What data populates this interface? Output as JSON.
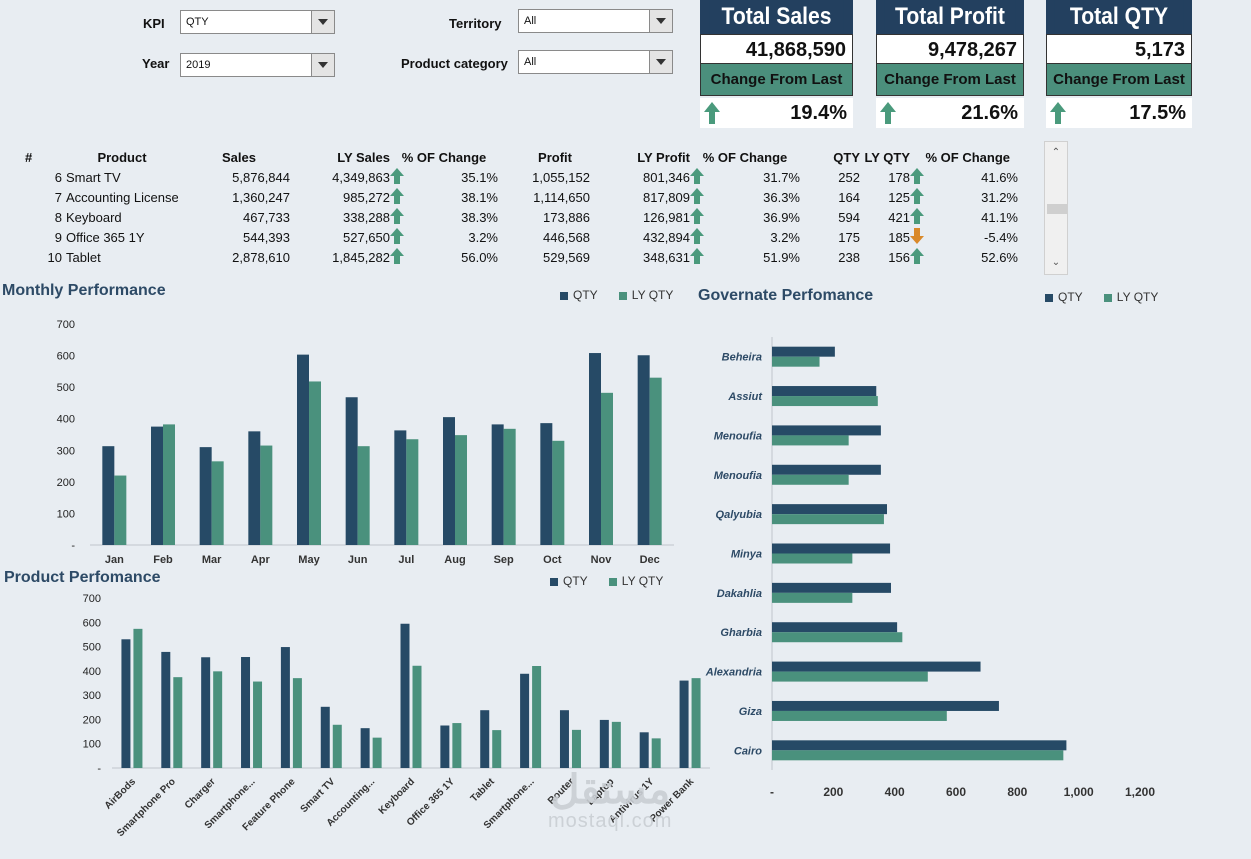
{
  "filters": {
    "kpi_label": "KPI",
    "kpi_value": "QTY",
    "year_label": "Year",
    "year_value": "2019",
    "territory_label": "Territory",
    "territory_value": "All",
    "category_label": "Product category",
    "category_value": "All"
  },
  "cards": [
    {
      "title": "Total Sales",
      "value": "41,868,590",
      "change_label": "Change From Last Year",
      "change": "19.4%"
    },
    {
      "title": "Total Profit",
      "value": "9,478,267",
      "change_label": "Change From Last Year",
      "change": "21.6%"
    },
    {
      "title": "Total QTY",
      "value": "5,173",
      "change_label": "Change From Last Year",
      "change": "17.5%"
    }
  ],
  "table": {
    "headers": [
      "#",
      "Product",
      "Sales",
      "LY Sales",
      "% OF Change",
      "Profit",
      "LY Profit",
      "% OF Change",
      "QTY",
      "LY QTY",
      "% OF Change"
    ],
    "rows": [
      {
        "n": "6",
        "product": "Smart TV",
        "sales": "5,876,844",
        "ly_sales": "4,349,863",
        "sales_chg": "35.1%",
        "sales_dir": "up",
        "profit": "1,055,152",
        "ly_profit": "801,346",
        "profit_chg": "31.7%",
        "profit_dir": "up",
        "qty": "252",
        "ly_qty": "178",
        "qty_chg": "41.6%",
        "qty_dir": "up"
      },
      {
        "n": "7",
        "product": "Accounting License",
        "sales": "1,360,247",
        "ly_sales": "985,272",
        "sales_chg": "38.1%",
        "sales_dir": "up",
        "profit": "1,114,650",
        "ly_profit": "817,809",
        "profit_chg": "36.3%",
        "profit_dir": "up",
        "qty": "164",
        "ly_qty": "125",
        "qty_chg": "31.2%",
        "qty_dir": "up"
      },
      {
        "n": "8",
        "product": "Keyboard",
        "sales": "467,733",
        "ly_sales": "338,288",
        "sales_chg": "38.3%",
        "sales_dir": "up",
        "profit": "173,886",
        "ly_profit": "126,981",
        "profit_chg": "36.9%",
        "profit_dir": "up",
        "qty": "594",
        "ly_qty": "421",
        "qty_chg": "41.1%",
        "qty_dir": "up"
      },
      {
        "n": "9",
        "product": "Office 365 1Y",
        "sales": "544,393",
        "ly_sales": "527,650",
        "sales_chg": "3.2%",
        "sales_dir": "up",
        "profit": "446,568",
        "ly_profit": "432,894",
        "profit_chg": "3.2%",
        "profit_dir": "up",
        "qty": "175",
        "ly_qty": "185",
        "qty_chg": "-5.4%",
        "qty_dir": "down"
      },
      {
        "n": "10",
        "product": "Tablet",
        "sales": "2,878,610",
        "ly_sales": "1,845,282",
        "sales_chg": "56.0%",
        "sales_dir": "up",
        "profit": "529,569",
        "ly_profit": "348,631",
        "profit_chg": "51.9%",
        "profit_dir": "up",
        "qty": "238",
        "ly_qty": "156",
        "qty_chg": "52.6%",
        "qty_dir": "up"
      }
    ]
  },
  "colors": {
    "qty": "#264a66",
    "ly_qty": "#4a917d"
  },
  "watermark": {
    "arabic": "مستقل",
    "latin": "mostaql.com"
  },
  "chart_data": [
    {
      "id": "monthly",
      "type": "bar",
      "title": "Monthly Performance",
      "categories": [
        "Jan",
        "Feb",
        "Mar",
        "Apr",
        "May",
        "Jun",
        "Jul",
        "Aug",
        "Sep",
        "Oct",
        "Nov",
        "Dec"
      ],
      "series": [
        {
          "name": "QTY",
          "values": [
            313,
            375,
            310,
            360,
            603,
            468,
            363,
            405,
            382,
            386,
            608,
            601
          ]
        },
        {
          "name": "LY QTY",
          "values": [
            220,
            382,
            265,
            315,
            518,
            313,
            335,
            348,
            368,
            330,
            482,
            530
          ]
        }
      ],
      "yticks": [
        "-",
        "100",
        "200",
        "300",
        "400",
        "500",
        "600",
        "700"
      ],
      "ylim": [
        0,
        700
      ],
      "legend": "top-right"
    },
    {
      "id": "product",
      "type": "bar",
      "title": "Product Perfomance",
      "categories": [
        "AirBods",
        "Smartphone Pro",
        "Charger",
        "Smartphone...",
        "Feature Phone",
        "Smart TV",
        "Accounting...",
        "Keyboard",
        "Office 365 1Y",
        "Tablet",
        "Smartphone...",
        "Router",
        "Laptop",
        "Antivirus 1Y",
        "Power Bank"
      ],
      "series": [
        {
          "name": "QTY",
          "values": [
            530,
            478,
            456,
            457,
            498,
            252,
            164,
            594,
            175,
            238,
            388,
            238,
            198,
            147,
            360
          ]
        },
        {
          "name": "LY QTY",
          "values": [
            573,
            374,
            398,
            356,
            370,
            178,
            125,
            421,
            185,
            156,
            420,
            157,
            190,
            122,
            370
          ]
        }
      ],
      "yticks": [
        "-",
        "100",
        "200",
        "300",
        "400",
        "500",
        "600",
        "700"
      ],
      "ylim": [
        0,
        700
      ],
      "legend": "top-right"
    },
    {
      "id": "governate",
      "type": "bar",
      "orientation": "horizontal",
      "title": "Governate Perfomance",
      "categories": [
        "Beheira",
        "Assiut",
        "Menoufia",
        "Menoufia",
        "Qalyubia",
        "Minya",
        "Dakahlia",
        "Gharbia",
        "Alexandria",
        "Giza",
        "Cairo"
      ],
      "series": [
        {
          "name": "QTY",
          "values": [
            205,
            340,
            355,
            355,
            375,
            385,
            388,
            408,
            680,
            740,
            960
          ]
        },
        {
          "name": "LY QTY",
          "values": [
            155,
            345,
            250,
            250,
            365,
            262,
            262,
            425,
            508,
            570,
            950
          ]
        }
      ],
      "xticks": [
        "-",
        "200",
        "400",
        "600",
        "800",
        "1,000",
        "1,200"
      ],
      "xlim": [
        0,
        1200
      ],
      "legend": "top-right"
    }
  ]
}
